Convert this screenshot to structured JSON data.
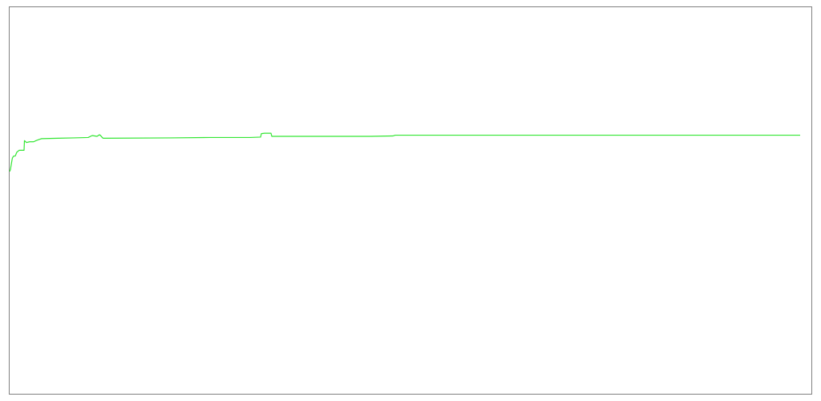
{
  "chart_data": {
    "type": "line",
    "title": "",
    "xlabel": "",
    "ylabel": "",
    "grid": false,
    "legend": "none",
    "xlim": [
      0,
      1000
    ],
    "ylim": [
      0,
      100
    ],
    "series": [
      {
        "color": "#33e633",
        "x": [
          0,
          1,
          3,
          3.5,
          5,
          7,
          8,
          9,
          12,
          18,
          18.5,
          21,
          25,
          30,
          33,
          37,
          40,
          60,
          80,
          98,
          100,
          103,
          109,
          112,
          113,
          116,
          117,
          200,
          250,
          300,
          313,
          314,
          318,
          326,
          327,
          350,
          450,
          478,
          481,
          550,
          700,
          850,
          986
        ],
        "y": [
          57.5,
          58,
          60.5,
          61,
          61.5,
          61.5,
          62,
          62.5,
          63,
          63,
          65.5,
          65,
          65.2,
          65.2,
          65.5,
          65.8,
          66,
          66.1,
          66.2,
          66.3,
          66.5,
          66.8,
          66.6,
          67,
          66.9,
          66.2,
          66.1,
          66.2,
          66.3,
          66.3,
          66.4,
          67.3,
          67.4,
          67.4,
          66.6,
          66.6,
          66.6,
          66.7,
          66.9,
          66.9,
          66.9,
          66.9,
          66.9
        ]
      }
    ]
  }
}
